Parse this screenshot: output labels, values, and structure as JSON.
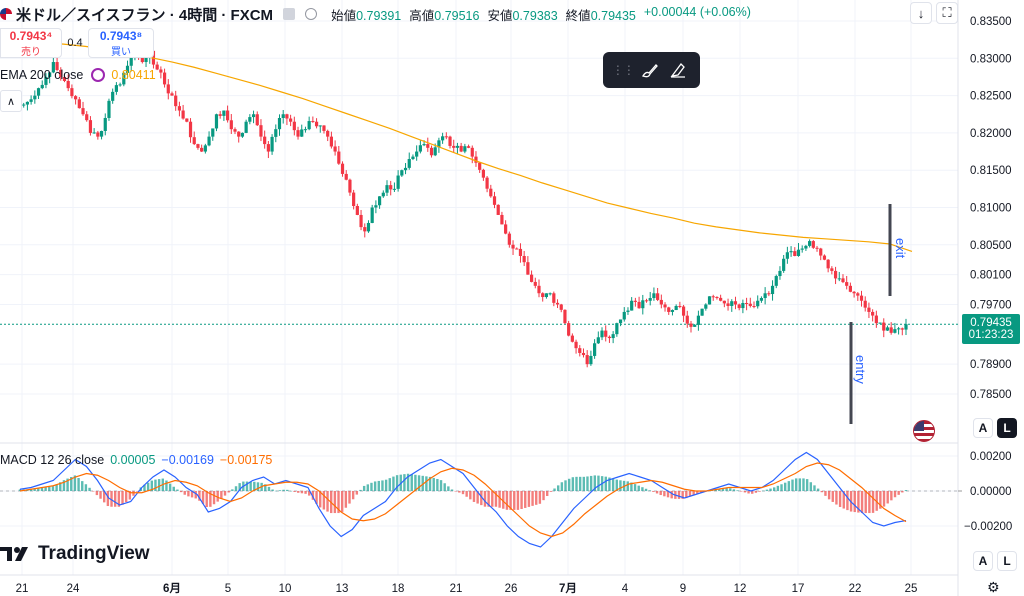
{
  "header": {
    "symbol": "米ドル／スイスフラン · 4時間 · FXCM",
    "open_label": "始値",
    "open_value": "0.79391",
    "high_label": "高値",
    "high_value": "0.79516",
    "low_label": "安値",
    "low_value": "0.79383",
    "close_label": "終値",
    "close_value": "0.79435",
    "change": "+0.00044 (+0.06%)"
  },
  "trade": {
    "sell_price": "0.7943⁴",
    "sell_label": "売り",
    "spread": "0.4",
    "buy_price": "0.7943⁸",
    "buy_label": "買い"
  },
  "ema": {
    "label": "EMA 200 close",
    "value": "0.80411",
    "color": "#f7a600"
  },
  "macd": {
    "label": "MACD 12 26 close",
    "hist": "0.00005",
    "macd": "−0.00169",
    "signal": "−0.00175",
    "macd_color": "#2962ff",
    "signal_color": "#ff6d00"
  },
  "price_tag": {
    "price": "0.79435",
    "countdown": "01:23:23"
  },
  "annotations": {
    "exit": "exit",
    "entry": "entry"
  },
  "scale": {
    "a": "A",
    "l": "L"
  },
  "brand": {
    "name": "TradingView"
  },
  "icons": {
    "download": "download-icon",
    "fullscreen": "fullscreen-icon",
    "brush": "brush-icon",
    "highlighter": "highlighter-icon",
    "settings": "settings-icon",
    "flag": "us-flag-icon"
  },
  "chart_data": {
    "type": "candlestick",
    "up_color": "#089981",
    "down_color": "#f23645",
    "y_ticks": [
      "0.83500",
      "0.83000",
      "0.82500",
      "0.82000",
      "0.81500",
      "0.81000",
      "0.80500",
      "0.80100",
      "0.79700",
      "0.78900",
      "0.78500"
    ],
    "macd_ticks": [
      "0.00200",
      "0.00000",
      "-0.00200"
    ],
    "x_ticks": [
      "21",
      "24",
      "6月",
      "5",
      "10",
      "13",
      "18",
      "21",
      "26",
      "7月",
      "4",
      "9",
      "12",
      "17",
      "22",
      "25"
    ],
    "close_path": [
      0.8238,
      0.8245,
      0.826,
      0.8275,
      0.8295,
      0.8275,
      0.826,
      0.8245,
      0.8225,
      0.82,
      0.8195,
      0.822,
      0.8255,
      0.8265,
      0.829,
      0.8305,
      0.8295,
      0.831,
      0.8285,
      0.8265,
      0.825,
      0.823,
      0.8215,
      0.8185,
      0.8175,
      0.8195,
      0.8225,
      0.823,
      0.8205,
      0.8195,
      0.8215,
      0.8225,
      0.8195,
      0.8175,
      0.8205,
      0.8225,
      0.8215,
      0.8195,
      0.8205,
      0.8215,
      0.821,
      0.8195,
      0.8175,
      0.8145,
      0.812,
      0.809,
      0.8068,
      0.81,
      0.8115,
      0.813,
      0.8125,
      0.815,
      0.8165,
      0.8175,
      0.8185,
      0.817,
      0.819,
      0.8195,
      0.818,
      0.8175,
      0.818,
      0.816,
      0.814,
      0.8115,
      0.809,
      0.8065,
      0.8045,
      0.8035,
      0.801,
      0.7995,
      0.798,
      0.7985,
      0.797,
      0.7945,
      0.792,
      0.7905,
      0.789,
      0.7918,
      0.7935,
      0.7925,
      0.7945,
      0.796,
      0.7975,
      0.7965,
      0.7975,
      0.7985,
      0.797,
      0.796,
      0.7968,
      0.7955,
      0.794,
      0.7955,
      0.797,
      0.798,
      0.7975,
      0.7968,
      0.797,
      0.7972,
      0.7968,
      0.7975,
      0.7985,
      0.7995,
      0.8015,
      0.804,
      0.8035,
      0.8045,
      0.8055,
      0.8045,
      0.803,
      0.8015,
      0.8005,
      0.7995,
      0.7985,
      0.7975,
      0.796,
      0.7945,
      0.7935,
      0.7932,
      0.7938,
      0.79435
    ],
    "ema_path": [
      0.8322,
      0.8321,
      0.8319,
      0.8316,
      0.8312,
      0.8307,
      0.8301,
      0.8295,
      0.8288,
      0.828,
      0.8272,
      0.8264,
      0.8255,
      0.8246,
      0.8236,
      0.8226,
      0.8216,
      0.8206,
      0.8195,
      0.8184,
      0.8173,
      0.8162,
      0.8152,
      0.8143,
      0.8133,
      0.8124,
      0.8115,
      0.8106,
      0.8099,
      0.8092,
      0.8086,
      0.8079,
      0.8074,
      0.807,
      0.8066,
      0.8063,
      0.806,
      0.8058,
      0.8056,
      0.8054,
      0.8051,
      0.80411
    ],
    "macd_values": [
      0.0001,
      0.0002,
      0.0004,
      0.0006,
      0.0012,
      0.0018,
      0.0014,
      0.0006,
      -0.0004,
      -0.0008,
      -0.0006,
      0.0002,
      0.0008,
      0.0012,
      0.0008,
      0.0002,
      -0.0002,
      -0.0012,
      -0.001,
      -0.0006,
      0.0002,
      0.0006,
      0.0008,
      0.0004,
      0.0006,
      0.0004,
      0.0002,
      -0.001,
      -0.002,
      -0.0026,
      -0.0022,
      -0.0014,
      -0.001,
      -0.0006,
      0.0002,
      0.0008,
      0.0012,
      0.0016,
      0.0018,
      0.0014,
      0.001,
      0.0002,
      -0.0006,
      -0.0012,
      -0.002,
      -0.0026,
      -0.003,
      -0.0032,
      -0.0026,
      -0.0018,
      -0.001,
      -0.0004,
      0.0002,
      0.0006,
      0.0008,
      0.001,
      0.0008,
      0.0006,
      0.0002,
      -0.0002,
      -0.0004,
      -0.0002,
      0.0,
      0.0002,
      0.0004,
      0.0002,
      0.0,
      0.0002,
      0.0006,
      0.0012,
      0.0018,
      0.0022,
      0.0018,
      0.001,
      0.0002,
      -0.0006,
      -0.0012,
      -0.0018,
      -0.002,
      -0.0018,
      -0.00169
    ],
    "signal_values": [
      0.0,
      0.0001,
      0.0002,
      0.0003,
      0.0005,
      0.0008,
      0.001,
      0.0009,
      0.0006,
      0.0002,
      -0.0001,
      -0.0001,
      0.0001,
      0.0004,
      0.0006,
      0.0005,
      0.0003,
      -0.0001,
      -0.0004,
      -0.0006,
      -0.0004,
      0.0,
      0.0003,
      0.0004,
      0.0005,
      0.0005,
      0.0004,
      0.0,
      -0.0006,
      -0.0012,
      -0.0016,
      -0.0017,
      -0.0016,
      -0.0013,
      -0.0008,
      -0.0003,
      0.0002,
      0.0007,
      0.0011,
      0.0013,
      0.0012,
      0.0009,
      0.0004,
      -0.0002,
      -0.0008,
      -0.0014,
      -0.002,
      -0.0024,
      -0.0026,
      -0.0024,
      -0.0019,
      -0.0013,
      -0.0008,
      -0.0003,
      0.0001,
      0.0004,
      0.0005,
      0.0006,
      0.0005,
      0.0003,
      0.0001,
      0.0,
      0.0,
      0.0001,
      0.0002,
      0.0002,
      0.0002,
      0.0002,
      0.0004,
      0.0007,
      0.001,
      0.0014,
      0.0016,
      0.0015,
      0.0012,
      0.0007,
      0.0002,
      -0.0004,
      -0.001,
      -0.0014,
      -0.00175
    ]
  }
}
